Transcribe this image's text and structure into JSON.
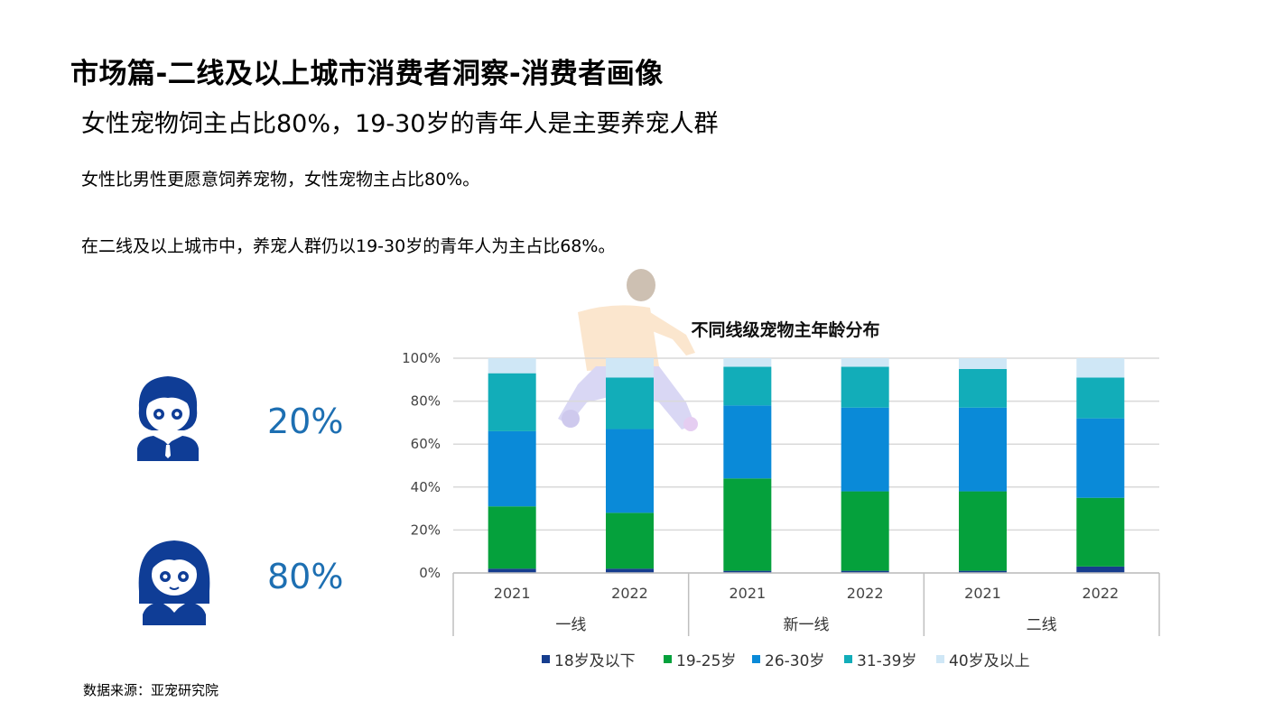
{
  "header": {
    "title": "市场篇-二线及以上城市消费者洞察-消费者画像",
    "subtitle": "女性宠物饲主占比80%，19-30岁的青年人是主要养宠人群"
  },
  "paragraphs": [
    "女性比男性更愿意饲养宠物，女性宠物主占比80%。",
    "在二线及以上城市中，养宠人群仍以19-30岁的青年人为主占比68%。"
  ],
  "gender": {
    "male_pct": "20%",
    "female_pct": "80%",
    "male_icon": "male-user-icon",
    "female_icon": "female-user-icon"
  },
  "source": "数据来源：亚宠研究院",
  "chart_data": {
    "type": "bar",
    "stacked": true,
    "title": "不同线级宠物主年龄分布",
    "y_ticks": [
      "0%",
      "20%",
      "40%",
      "60%",
      "80%",
      "100%"
    ],
    "ylim": [
      0,
      100
    ],
    "grid": true,
    "legend_position": "bottom",
    "groups": [
      {
        "name": "一线",
        "categories": [
          "2021",
          "2022"
        ]
      },
      {
        "name": "新一线",
        "categories": [
          "2021",
          "2022"
        ]
      },
      {
        "name": "二线",
        "categories": [
          "2021",
          "2022"
        ]
      }
    ],
    "series": [
      {
        "name": "18岁及以下",
        "color": "#163d8e",
        "values": [
          2,
          2,
          1,
          1,
          1,
          3
        ]
      },
      {
        "name": "19-25岁",
        "color": "#05a13c",
        "values": [
          29,
          26,
          43,
          37,
          37,
          32
        ]
      },
      {
        "name": "26-30岁",
        "color": "#0a8ad8",
        "values": [
          35,
          39,
          34,
          39,
          39,
          37
        ]
      },
      {
        "name": "31-39岁",
        "color": "#12adb9",
        "values": [
          27,
          24,
          18,
          19,
          18,
          19
        ]
      },
      {
        "name": "40岁及以上",
        "color": "#cfe7f6",
        "values": [
          7,
          9,
          4,
          4,
          5,
          9
        ]
      }
    ]
  }
}
